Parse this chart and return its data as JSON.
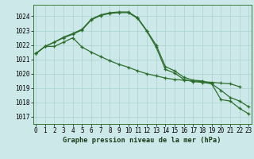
{
  "title": "Graphe pression niveau de la mer (hPa)",
  "bg_color": "#cce8e8",
  "grid_color": "#aad0d0",
  "line_color": "#2d6e2d",
  "ylim": [
    1016.5,
    1024.8
  ],
  "yticks": [
    1017,
    1018,
    1019,
    1020,
    1021,
    1022,
    1023,
    1024
  ],
  "xlim": [
    -0.3,
    23.3
  ],
  "s1": [
    1021.4,
    1021.9,
    1021.9,
    1022.2,
    1022.5,
    1021.85,
    1021.5,
    1021.2,
    1020.9,
    1020.65,
    1020.45,
    1020.2,
    1020.0,
    1019.85,
    1019.7,
    1019.6,
    1019.55,
    1019.5,
    1019.45,
    1019.4,
    1019.35,
    1019.3,
    1019.1,
    null
  ],
  "s2": [
    1021.4,
    1021.9,
    1022.2,
    1022.5,
    1022.75,
    1023.05,
    1023.75,
    1024.05,
    1024.2,
    1024.25,
    1024.25,
    1023.85,
    1022.95,
    1021.85,
    1020.3,
    1020.05,
    1019.6,
    1019.45,
    1019.4,
    1019.3,
    1018.85,
    1018.35,
    1018.1,
    1017.7
  ],
  "s3": [
    1021.4,
    1021.9,
    1022.2,
    1022.55,
    1022.8,
    1023.1,
    1023.8,
    1024.1,
    1024.25,
    1024.3,
    1024.3,
    1023.9,
    1023.0,
    1022.0,
    1020.5,
    1020.2,
    1019.75,
    1019.55,
    1019.5,
    1019.3,
    1018.2,
    1018.1,
    1017.6,
    1017.2
  ],
  "tick_fontsize": 5.5,
  "xlabel_fontsize": 6.2
}
